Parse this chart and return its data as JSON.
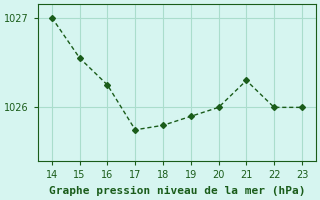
{
  "x": [
    14,
    15,
    16,
    17,
    18,
    19,
    20,
    21,
    22,
    23
  ],
  "y": [
    1027.0,
    1026.55,
    1026.25,
    1025.75,
    1025.8,
    1025.9,
    1026.0,
    1026.3,
    1026.0,
    1026.0
  ],
  "line_color": "#1a5c1a",
  "marker": "D",
  "marker_size": 3,
  "background_color": "#d6f5f0",
  "grid_color": "#aaddcc",
  "xlabel": "Graphe pression niveau de la mer (hPa)",
  "xlabel_color": "#1a5c1a",
  "xlabel_fontsize": 8,
  "tick_color": "#1a5c1a",
  "tick_fontsize": 7,
  "ylim": [
    1025.4,
    1027.15
  ],
  "xlim": [
    13.5,
    23.5
  ],
  "yticks": [
    1026,
    1027
  ],
  "xticks": [
    14,
    15,
    16,
    17,
    18,
    19,
    20,
    21,
    22,
    23
  ]
}
